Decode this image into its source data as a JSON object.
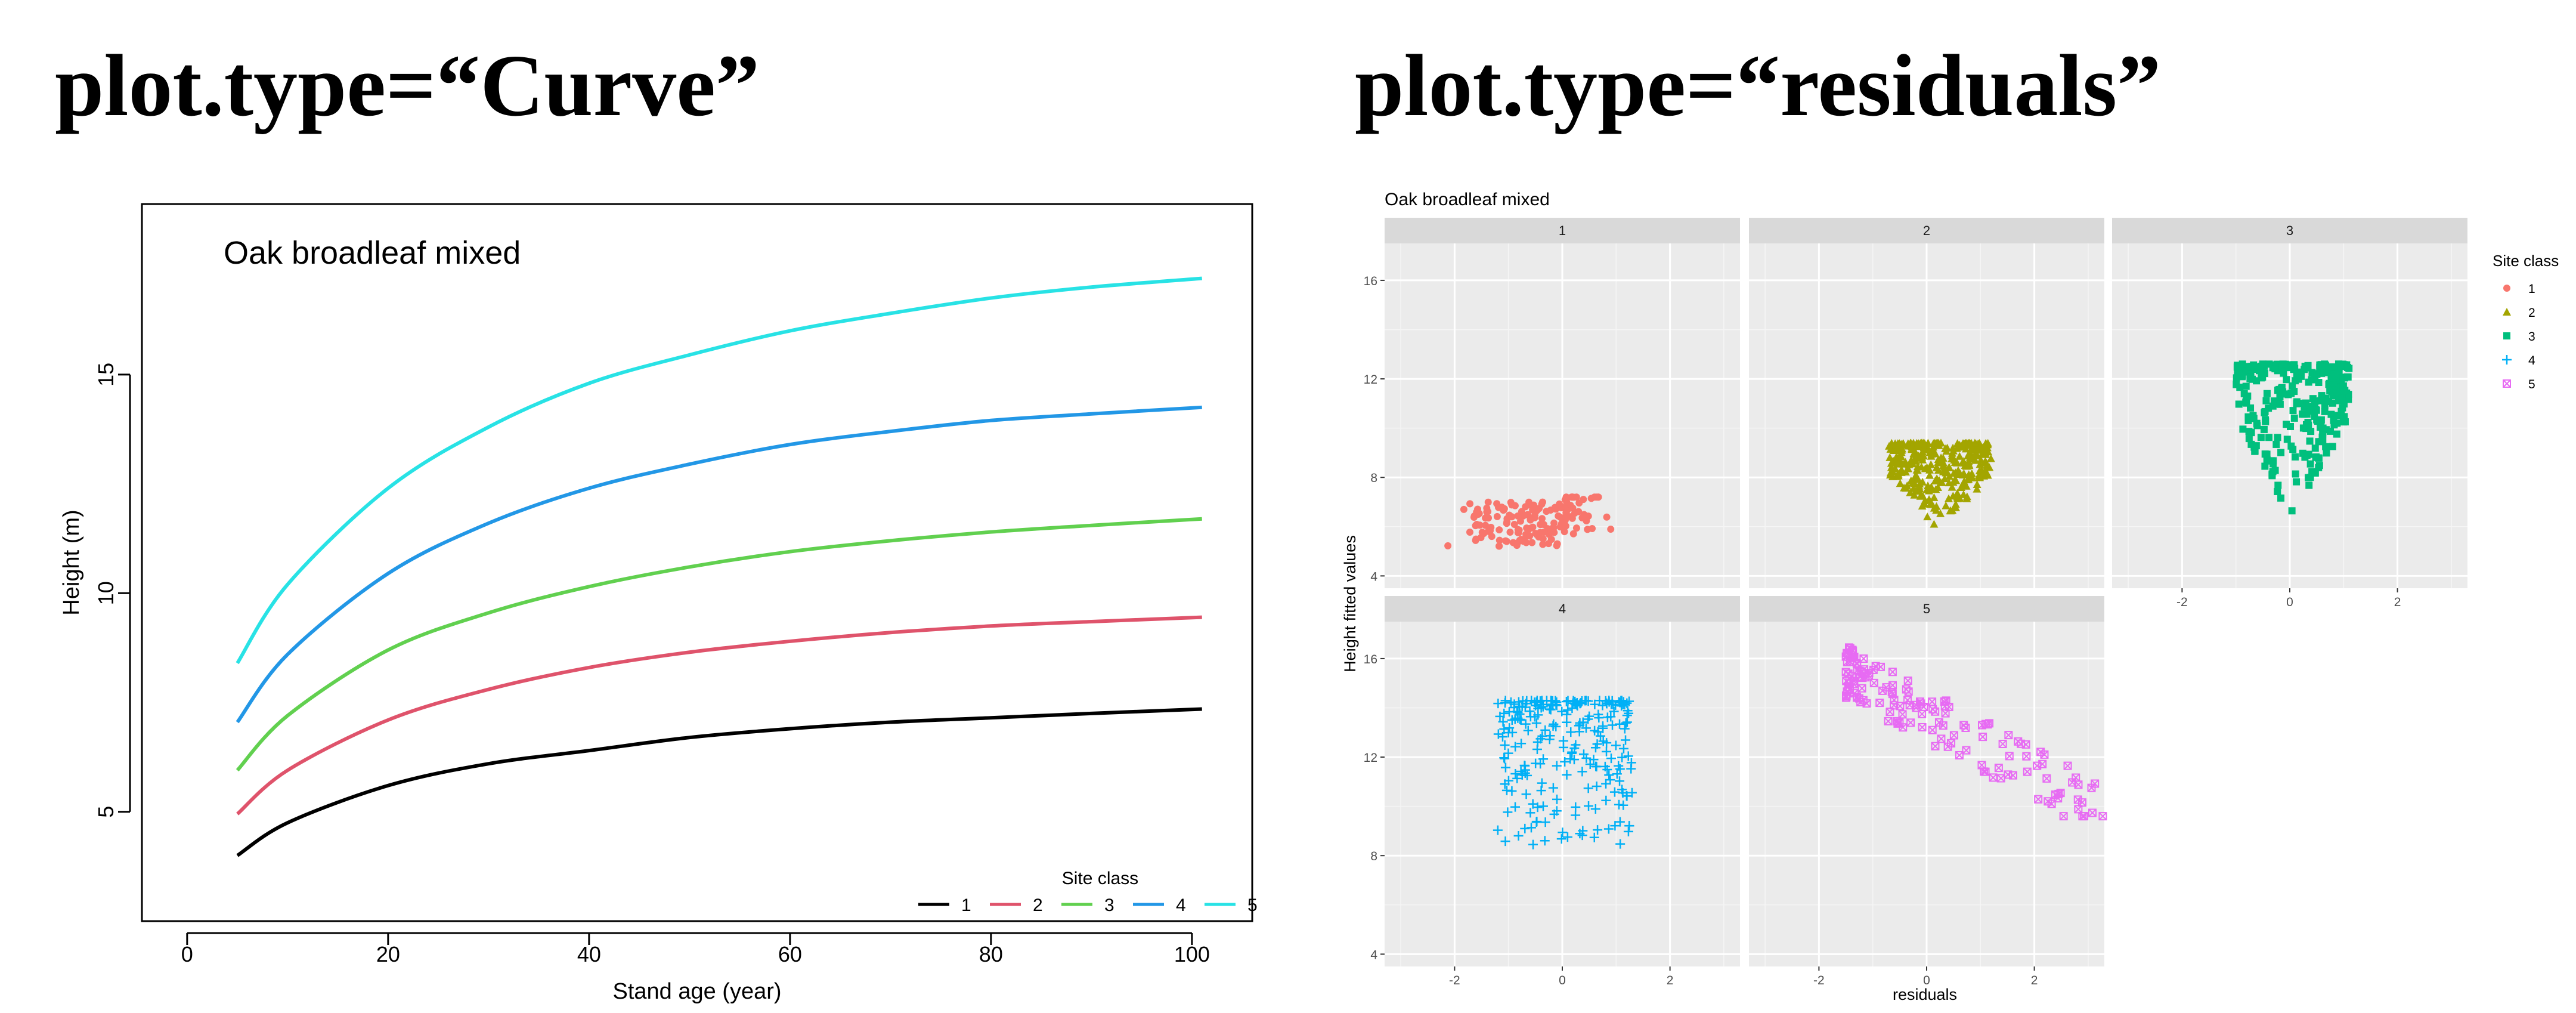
{
  "headings": {
    "curve": "plot.type=“Curve”",
    "residuals": "plot.type=“residuals”"
  },
  "chart_data": [
    {
      "type": "line",
      "title": "Oak broadleaf mixed",
      "xlabel": "Stand age (year)",
      "ylabel": "Height (m)",
      "xlim": [
        -4.5,
        106
      ],
      "ylim": [
        2.5,
        18.9
      ],
      "xticks": [
        0,
        20,
        40,
        60,
        80,
        100
      ],
      "yticks": [
        5,
        10,
        15
      ],
      "grid": false,
      "legend": {
        "title": "Site class",
        "placement": "bottom-right"
      },
      "x": [
        5,
        10,
        20,
        30,
        40,
        50,
        60,
        70,
        80,
        90,
        101
      ],
      "series": [
        {
          "name": "1",
          "color": "#000000",
          "values": [
            4.0,
            4.75,
            5.6,
            6.1,
            6.4,
            6.7,
            6.9,
            7.05,
            7.15,
            7.25,
            7.35
          ]
        },
        {
          "name": "2",
          "color": "#df536b",
          "values": [
            4.95,
            5.95,
            7.1,
            7.8,
            8.3,
            8.65,
            8.9,
            9.1,
            9.25,
            9.35,
            9.45
          ]
        },
        {
          "name": "3",
          "color": "#61d04f",
          "values": [
            5.95,
            7.2,
            8.7,
            9.55,
            10.15,
            10.6,
            10.95,
            11.2,
            11.4,
            11.55,
            11.7
          ]
        },
        {
          "name": "4",
          "color": "#2297e6",
          "values": [
            7.05,
            8.6,
            10.45,
            11.6,
            12.4,
            12.95,
            13.4,
            13.7,
            13.95,
            14.1,
            14.25
          ]
        },
        {
          "name": "5",
          "color": "#28e2e5",
          "values": [
            8.4,
            10.2,
            12.4,
            13.8,
            14.8,
            15.45,
            16.0,
            16.4,
            16.75,
            17.0,
            17.2
          ]
        }
      ]
    },
    {
      "type": "scatter",
      "title": "Oak broadleaf mixed",
      "xlabel": "residuals",
      "ylabel": "Height fitted values",
      "xlim": [
        -3.3,
        3.3
      ],
      "ylim": [
        3.5,
        17.5
      ],
      "xticks": [
        -2,
        0,
        2
      ],
      "yticks": [
        4,
        8,
        12,
        16
      ],
      "grid": true,
      "legend": {
        "title": "Site class",
        "placement": "right"
      },
      "panels": [
        {
          "name": "1",
          "color": "#f8766d",
          "shape": "circle",
          "x_range": [
            -2.2,
            1.0
          ],
          "y_range": [
            4.2,
            7.2
          ],
          "center": [
            0.0,
            6.3
          ],
          "n": 170
        },
        {
          "name": "2",
          "color": "#a3a500",
          "shape": "triangle",
          "x_range": [
            -0.7,
            1.2
          ],
          "y_range": [
            5.8,
            9.4
          ],
          "center": [
            0.1,
            8.2
          ],
          "n": 320
        },
        {
          "name": "3",
          "color": "#00bf7d",
          "shape": "square",
          "x_range": [
            -1.0,
            1.1
          ],
          "y_range": [
            6.3,
            12.6
          ],
          "center": [
            -0.1,
            10.0
          ],
          "n": 300
        },
        {
          "name": "4",
          "color": "#00b0f6",
          "shape": "plus",
          "x_range": [
            -1.2,
            1.3
          ],
          "y_range": [
            8.4,
            14.3
          ],
          "center": [
            -0.1,
            12.6
          ],
          "n": 260
        },
        {
          "name": "5",
          "color": "#e76bf3",
          "shape": "square-x",
          "x_range": [
            -1.5,
            3.3
          ],
          "y_range": [
            9.6,
            16.6
          ],
          "center": [
            0.0,
            15.2
          ],
          "n": 150
        }
      ]
    }
  ]
}
